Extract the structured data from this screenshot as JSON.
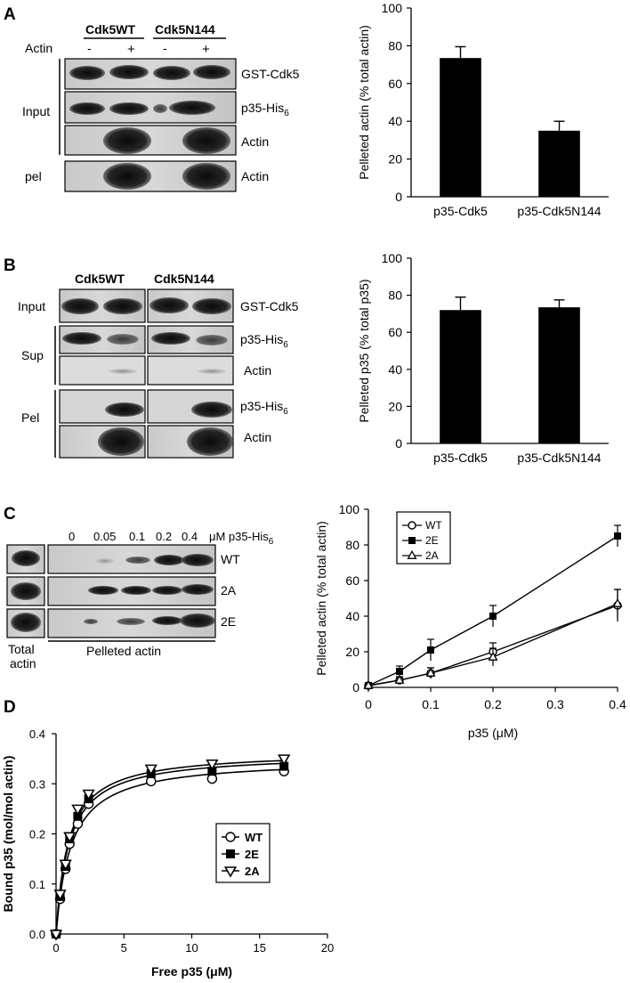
{
  "panels": [
    {
      "letter": "A",
      "header_left": "Cdk5WT",
      "header_right": "Cdk5N144",
      "actin_row_label": "Actin",
      "signs": [
        "-",
        "+",
        "-",
        "+"
      ],
      "group_labels": [
        "Input",
        "pel"
      ],
      "blot_labels": [
        "GST-Cdk5",
        "p35-His6",
        "Actin",
        "Actin"
      ],
      "chart_index": 0
    },
    {
      "letter": "B",
      "header_left": "Cdk5WT",
      "header_right": "Cdk5N144",
      "group_labels": [
        "Input",
        "Sup",
        "Pel"
      ],
      "blot_labels": [
        "GST-Cdk5",
        "p35-His6",
        "Actin",
        "p35-His6",
        "Actin"
      ],
      "chart_index": 1
    },
    {
      "letter": "C",
      "concentrations": [
        "0",
        "0.05",
        "0.1",
        "0.2",
        "0.4"
      ],
      "conc_unit": "μM p35-His6",
      "row_labels": [
        "WT",
        "2A",
        "2E"
      ],
      "bottom_left": [
        "Total",
        "actin"
      ],
      "bottom_right": "Pelleted actin",
      "chart_index": 2
    },
    {
      "letter": "D",
      "chart_index": 3
    }
  ],
  "chart_data": [
    {
      "type": "bar",
      "categories": [
        "p35-Cdk5",
        "p35-Cdk5N144"
      ],
      "values": [
        73.5,
        35
      ],
      "errors": [
        6,
        5
      ],
      "title": "",
      "xlabel": "",
      "ylabel": "Pelleted actin (% total actin)",
      "ylim": [
        0,
        100
      ],
      "yticks": [
        0,
        20,
        40,
        60,
        80,
        100
      ],
      "grid": false,
      "bar_color": "#000000"
    },
    {
      "type": "bar",
      "categories": [
        "p35-Cdk5",
        "p35-Cdk5N144"
      ],
      "values": [
        72,
        73.5
      ],
      "errors": [
        7,
        4
      ],
      "title": "",
      "xlabel": "",
      "ylabel": "Pelleted p35 (% total p35)",
      "ylim": [
        0,
        100
      ],
      "yticks": [
        0,
        20,
        40,
        60,
        80,
        100
      ],
      "grid": false,
      "bar_color": "#000000"
    },
    {
      "type": "line",
      "x": [
        0,
        0.05,
        0.1,
        0.2,
        0.4
      ],
      "series": [
        {
          "name": "WT",
          "values": [
            1,
            4,
            8,
            20,
            46
          ],
          "errors": [
            1,
            2,
            3,
            5,
            9
          ],
          "marker": "circle-open"
        },
        {
          "name": "2E",
          "values": [
            1,
            9,
            21,
            40,
            85
          ],
          "errors": [
            1,
            3,
            6,
            6,
            6
          ],
          "marker": "square-filled"
        },
        {
          "name": "2A",
          "values": [
            1,
            4,
            8,
            17,
            47
          ],
          "errors": [
            1,
            2,
            3,
            5,
            8
          ],
          "marker": "triangle-open"
        }
      ],
      "title": "",
      "xlabel": "p35 (μM)",
      "ylabel": "Pelleted actin (% total actin)",
      "xlim": [
        0,
        0.4
      ],
      "ylim": [
        0,
        100
      ],
      "xticks": [
        "0",
        "0.1",
        "0.2",
        "0.3",
        "0.4"
      ],
      "yticks": [
        0,
        20,
        40,
        60,
        80,
        100
      ],
      "legend": "top-left",
      "grid": false
    },
    {
      "type": "scatter",
      "series": [
        {
          "name": "WT",
          "marker": "circle-open",
          "x": [
            0,
            0.3,
            0.7,
            1.0,
            1.6,
            2.4,
            7.0,
            11.5,
            16.8
          ],
          "y": [
            0.0,
            0.07,
            0.13,
            0.18,
            0.22,
            0.26,
            0.305,
            0.31,
            0.325
          ],
          "fit_bmax": 0.35,
          "fit_kd": 1.1
        },
        {
          "name": "2E",
          "marker": "square-filled",
          "x": [
            0,
            0.3,
            0.7,
            1.0,
            1.6,
            2.4,
            7.0,
            11.5,
            16.8
          ],
          "y": [
            0.0,
            0.075,
            0.135,
            0.19,
            0.235,
            0.27,
            0.32,
            0.325,
            0.335
          ],
          "fit_bmax": 0.36,
          "fit_kd": 0.95
        },
        {
          "name": "2A",
          "marker": "triangle-down-open",
          "x": [
            0,
            0.3,
            0.7,
            1.0,
            1.6,
            2.4,
            7.0,
            11.5,
            16.8
          ],
          "y": [
            0.0,
            0.08,
            0.14,
            0.195,
            0.25,
            0.28,
            0.33,
            0.34,
            0.35
          ],
          "fit_bmax": 0.365,
          "fit_kd": 0.9
        }
      ],
      "title": "",
      "xlabel": "Free p35 (μM)",
      "ylabel": "Bound p35 (mol/mol actin)",
      "xlim": [
        0,
        20
      ],
      "ylim": [
        0,
        0.4
      ],
      "xticks": [
        0,
        5,
        10,
        15,
        20
      ],
      "yticks": [
        "0.0",
        "0.1",
        "0.2",
        "0.3",
        "0.4"
      ],
      "legend": "center",
      "grid": false
    }
  ]
}
